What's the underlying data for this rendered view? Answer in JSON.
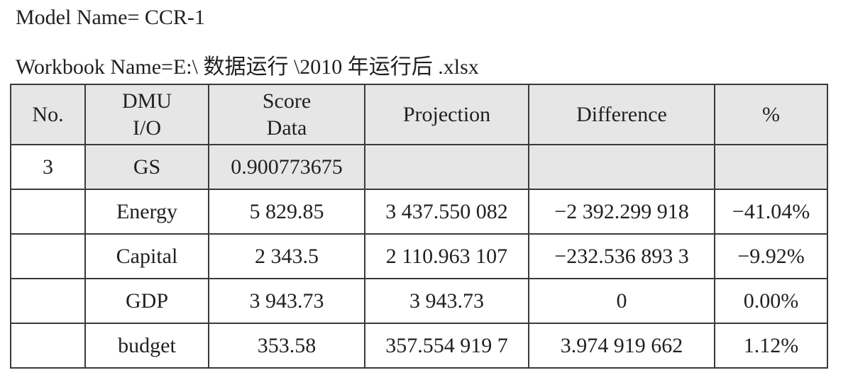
{
  "header": {
    "model": "Model Name= CCR-1",
    "workbook": "Workbook Name=E:\\ 数据运行 \\2010 年运行后 .xlsx"
  },
  "table": {
    "columns": [
      [
        "No."
      ],
      [
        "DMU",
        "I/O"
      ],
      [
        "Score",
        "Data"
      ],
      [
        "Projection"
      ],
      [
        "Difference"
      ],
      [
        "%"
      ]
    ],
    "rows": [
      [
        "3",
        "GS",
        "0.900773675",
        null,
        null,
        null
      ],
      [
        null,
        "Energy",
        "5 829.85",
        "3 437.550 082",
        "−2 392.299 918",
        "−41.04%"
      ],
      [
        null,
        "Capital",
        "2 343.5",
        "2 110.963 107",
        "−232.536 893 3",
        "−9.92%"
      ],
      [
        null,
        "GDP",
        "3 943.73",
        "3 943.73",
        "0",
        "0.00%"
      ],
      [
        null,
        "budget",
        "353.58",
        "357.554 919 7",
        "3.974 919 662",
        "1.12%"
      ]
    ]
  }
}
